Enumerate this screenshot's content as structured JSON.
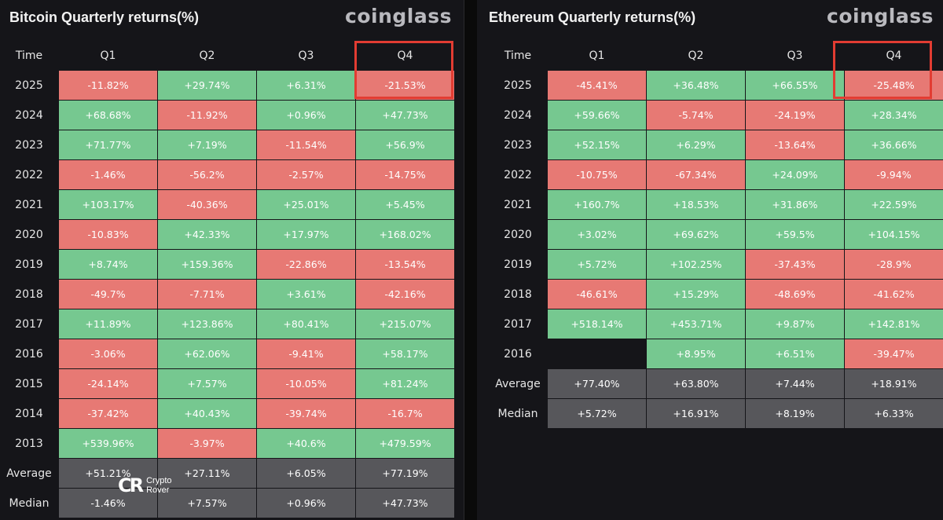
{
  "bitcoin": {
    "title": "Bitcoin Quarterly returns(%)",
    "brand": "coinglass",
    "headers": [
      "Time",
      "Q1",
      "Q2",
      "Q3",
      "Q4"
    ],
    "rows": [
      {
        "label": "2025",
        "values": [
          "-11.82%",
          "+29.74%",
          "+6.31%",
          "-21.53%"
        ]
      },
      {
        "label": "2024",
        "values": [
          "+68.68%",
          "-11.92%",
          "+0.96%",
          "+47.73%"
        ]
      },
      {
        "label": "2023",
        "values": [
          "+71.77%",
          "+7.19%",
          "-11.54%",
          "+56.9%"
        ]
      },
      {
        "label": "2022",
        "values": [
          "-1.46%",
          "-56.2%",
          "-2.57%",
          "-14.75%"
        ]
      },
      {
        "label": "2021",
        "values": [
          "+103.17%",
          "-40.36%",
          "+25.01%",
          "+5.45%"
        ]
      },
      {
        "label": "2020",
        "values": [
          "-10.83%",
          "+42.33%",
          "+17.97%",
          "+168.02%"
        ]
      },
      {
        "label": "2019",
        "values": [
          "+8.74%",
          "+159.36%",
          "-22.86%",
          "-13.54%"
        ]
      },
      {
        "label": "2018",
        "values": [
          "-49.7%",
          "-7.71%",
          "+3.61%",
          "-42.16%"
        ]
      },
      {
        "label": "2017",
        "values": [
          "+11.89%",
          "+123.86%",
          "+80.41%",
          "+215.07%"
        ]
      },
      {
        "label": "2016",
        "values": [
          "-3.06%",
          "+62.06%",
          "-9.41%",
          "+58.17%"
        ]
      },
      {
        "label": "2015",
        "values": [
          "-24.14%",
          "+7.57%",
          "-10.05%",
          "+81.24%"
        ]
      },
      {
        "label": "2014",
        "values": [
          "-37.42%",
          "+40.43%",
          "-39.74%",
          "-16.7%"
        ]
      },
      {
        "label": "2013",
        "values": [
          "+539.96%",
          "-3.97%",
          "+40.6%",
          "+479.59%"
        ]
      }
    ],
    "summary": [
      {
        "label": "Average",
        "values": [
          "+51.21%",
          "+27.11%",
          "+6.05%",
          "+77.19%"
        ]
      },
      {
        "label": "Median",
        "values": [
          "-1.46%",
          "+7.57%",
          "+0.96%",
          "+47.73%"
        ]
      }
    ]
  },
  "ethereum": {
    "title": "Ethereum Quarterly returns(%)",
    "brand": "coinglass",
    "headers": [
      "Time",
      "Q1",
      "Q2",
      "Q3",
      "Q4"
    ],
    "rows": [
      {
        "label": "2025",
        "values": [
          "-45.41%",
          "+36.48%",
          "+66.55%",
          "-25.48%"
        ]
      },
      {
        "label": "2024",
        "values": [
          "+59.66%",
          "-5.74%",
          "-24.19%",
          "+28.34%"
        ]
      },
      {
        "label": "2023",
        "values": [
          "+52.15%",
          "+6.29%",
          "-13.64%",
          "+36.66%"
        ]
      },
      {
        "label": "2022",
        "values": [
          "-10.75%",
          "-67.34%",
          "+24.09%",
          "-9.94%"
        ]
      },
      {
        "label": "2021",
        "values": [
          "+160.7%",
          "+18.53%",
          "+31.86%",
          "+22.59%"
        ]
      },
      {
        "label": "2020",
        "values": [
          "+3.02%",
          "+69.62%",
          "+59.5%",
          "+104.15%"
        ]
      },
      {
        "label": "2019",
        "values": [
          "+5.72%",
          "+102.25%",
          "-37.43%",
          "-28.9%"
        ]
      },
      {
        "label": "2018",
        "values": [
          "-46.61%",
          "+15.29%",
          "-48.69%",
          "-41.62%"
        ]
      },
      {
        "label": "2017",
        "values": [
          "+518.14%",
          "+453.71%",
          "+9.87%",
          "+142.81%"
        ]
      },
      {
        "label": "2016",
        "values": [
          "",
          "+8.95%",
          "+6.51%",
          "-39.47%"
        ]
      }
    ],
    "summary": [
      {
        "label": "Average",
        "values": [
          "+77.40%",
          "+63.80%",
          "+7.44%",
          "+18.91%"
        ]
      },
      {
        "label": "Median",
        "values": [
          "+5.72%",
          "+16.91%",
          "+8.19%",
          "+6.33%"
        ]
      }
    ]
  },
  "watermark": {
    "logo_text": "CR",
    "line1": "Crypto",
    "line2": "Rover"
  },
  "colors": {
    "positive": "#76c890",
    "negative": "#e77974",
    "summary": "#57575b",
    "highlight": "#e23c32",
    "panel": "#151519"
  }
}
